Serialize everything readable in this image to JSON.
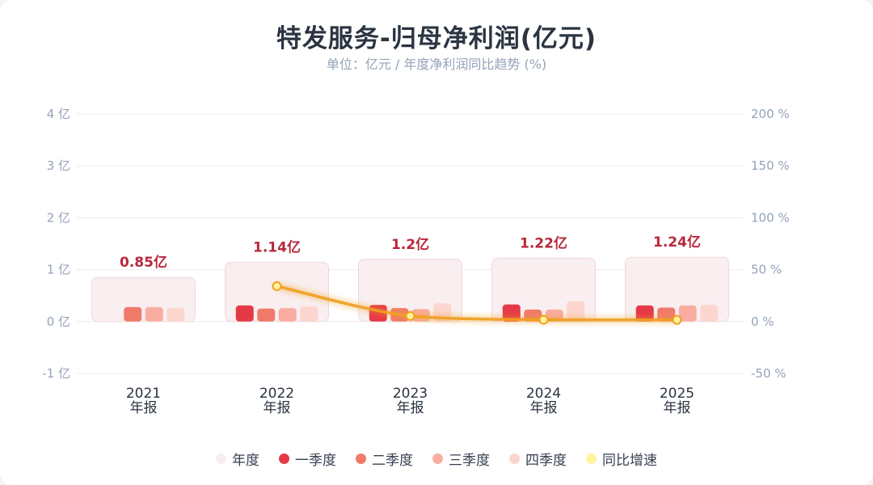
{
  "header": {
    "title": "特发服务-归母净利润(亿元)",
    "subtitle": "单位：亿元 / 年度净利润同比趋势 (%)"
  },
  "colors": {
    "annual": "#f9eef0",
    "annual_border": "#f2d7dc",
    "q1": "#e63946",
    "q2": "#f07b6b",
    "q3": "#f9ada0",
    "q4": "#fcd5ce",
    "yoy_line": "#f0a020",
    "yoy_point": "#fff3a0",
    "annual_label": "#b7283a",
    "grid": "#e9ecef",
    "axis_text": "#94a3b8"
  },
  "legend": [
    {
      "label": "年度",
      "color_key": "annual"
    },
    {
      "label": "一季度",
      "color_key": "q1"
    },
    {
      "label": "二季度",
      "color_key": "q2"
    },
    {
      "label": "三季度",
      "color_key": "q3"
    },
    {
      "label": "四季度",
      "color_key": "q4"
    },
    {
      "label": "同比增速",
      "color_key": "yoy_point"
    }
  ],
  "chart_data": {
    "type": "bar",
    "title": "特发服务-归母净利润(亿元)",
    "subtitle": "单位：亿元 / 年度净利润同比趋势 (%)",
    "categories": [
      {
        "year": "2021",
        "period": "年报"
      },
      {
        "year": "2022",
        "period": "年报"
      },
      {
        "year": "2023",
        "period": "年报"
      },
      {
        "year": "2024",
        "period": "年报"
      },
      {
        "year": "2025",
        "period": "年报"
      }
    ],
    "annual": {
      "name": "年度",
      "values": [
        0.85,
        1.14,
        1.2,
        1.22,
        1.24
      ],
      "labels": [
        "0.85亿",
        "1.14亿",
        "1.2亿",
        "1.22亿",
        "1.24亿"
      ]
    },
    "series": [
      {
        "name": "一季度",
        "values": [
          null,
          0.31,
          0.32,
          0.33,
          0.31
        ]
      },
      {
        "name": "二季度",
        "values": [
          0.28,
          0.25,
          0.26,
          0.23,
          0.27
        ]
      },
      {
        "name": "三季度",
        "values": [
          0.28,
          0.26,
          0.24,
          0.23,
          0.31
        ]
      },
      {
        "name": "四季度",
        "values": [
          0.26,
          0.29,
          0.35,
          0.39,
          0.32
        ]
      }
    ],
    "yoy": {
      "name": "同比增速",
      "values": [
        null,
        34.1,
        5.3,
        1.7,
        1.6
      ]
    },
    "y_left": {
      "min": -1,
      "max": 4,
      "ticks": [
        -1,
        0,
        1,
        2,
        3,
        4
      ],
      "tick_labels": [
        "-1 亿",
        "0 亿",
        "1 亿",
        "2 亿",
        "3 亿",
        "4 亿"
      ]
    },
    "y_right": {
      "min": -50,
      "max": 200,
      "ticks": [
        -50,
        0,
        50,
        100,
        150,
        200
      ],
      "tick_labels": [
        "-50 %",
        "0 %",
        "50 %",
        "100 %",
        "150 %",
        "200 %"
      ]
    },
    "grid": true,
    "legend_position": "bottom"
  }
}
